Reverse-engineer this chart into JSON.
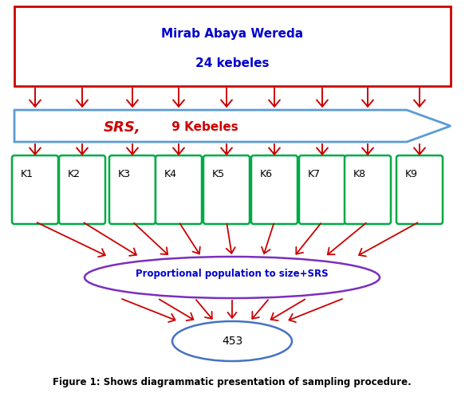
{
  "title_line1": "Mirab Abaya Wereda",
  "title_line2": "24 kebeles",
  "srs_text_bold": "SRS,",
  "srs_text_normal": " 9 Kebeles",
  "kebele_labels": [
    "K1",
    "K2",
    "K3",
    "K4",
    "K5",
    "K6",
    "K7",
    "K8",
    "K9"
  ],
  "ellipse1_text": "Proportional population to size+SRS",
  "ellipse2_text": "453",
  "figure_caption": "Figure 1: Shows diagrammatic presentation of sampling procedure.",
  "top_rect_color": "#cc0000",
  "arrow_color": "#5b9bd5",
  "kebele_box_color": "#00aa44",
  "ellipse1_color": "#7b2fbe",
  "ellipse2_color": "#4472c4",
  "red_arrow_color": "#cc0000",
  "title_text_color": "#0000cc",
  "srs_bold_color": "#cc0000",
  "srs_normal_color": "#cc0000",
  "ellipse1_text_color": "#0000cc",
  "background_color": "#ffffff"
}
